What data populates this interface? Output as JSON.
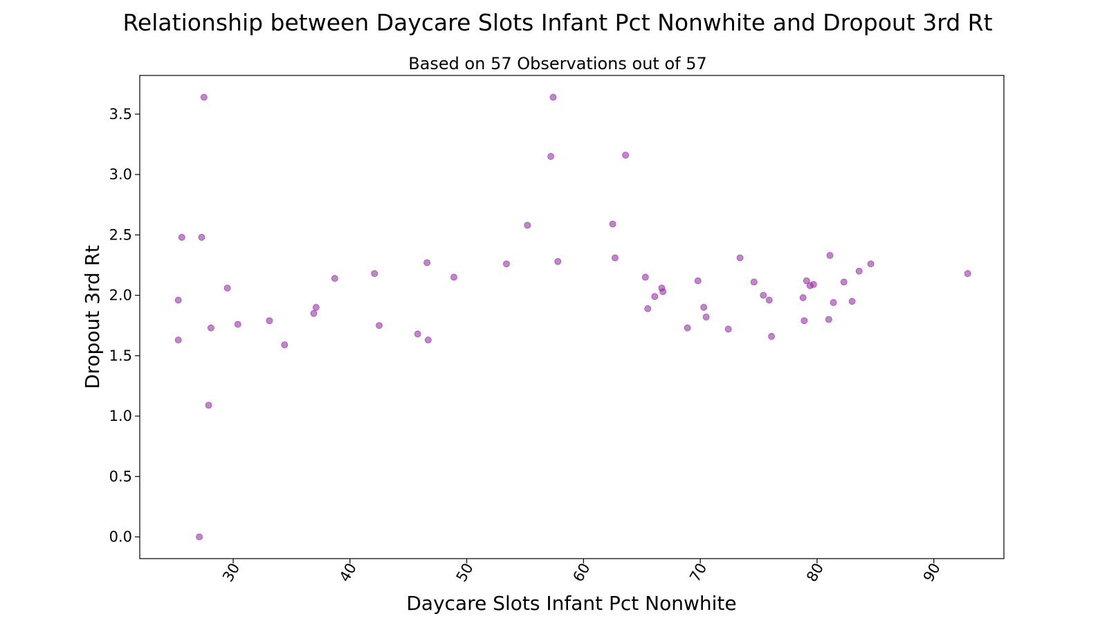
{
  "chart_data": {
    "type": "scatter",
    "title": "Relationship between Daycare Slots Infant Pct Nonwhite and Dropout 3rd Rt",
    "subtitle": "Based on 57 Observations out of 57",
    "xlabel": "Daycare Slots Infant Pct Nonwhite",
    "ylabel": "Dropout 3rd Rt",
    "xlim": [
      22,
      96
    ],
    "ylim": [
      -0.18,
      3.82
    ],
    "xticks": [
      30,
      40,
      50,
      60,
      70,
      80,
      90
    ],
    "yticks": [
      0.0,
      0.5,
      1.0,
      1.5,
      2.0,
      2.5,
      3.0,
      3.5
    ],
    "ytick_labels": [
      "0.0",
      "0.5",
      "1.0",
      "1.5",
      "2.0",
      "2.5",
      "3.0",
      "3.5"
    ],
    "grid": false,
    "marker_color": "#9932a8",
    "marker_alpha": 0.6,
    "series": [
      {
        "points": [
          [
            25.3,
            1.96
          ],
          [
            25.3,
            1.63
          ],
          [
            25.6,
            2.48
          ],
          [
            27.1,
            0.0
          ],
          [
            27.3,
            2.48
          ],
          [
            27.5,
            3.64
          ],
          [
            27.9,
            1.09
          ],
          [
            28.1,
            1.73
          ],
          [
            29.5,
            2.06
          ],
          [
            30.4,
            1.76
          ],
          [
            33.1,
            1.79
          ],
          [
            34.4,
            1.59
          ],
          [
            36.9,
            1.85
          ],
          [
            37.1,
            1.9
          ],
          [
            38.7,
            2.14
          ],
          [
            42.1,
            2.18
          ],
          [
            42.5,
            1.75
          ],
          [
            45.8,
            1.68
          ],
          [
            46.6,
            2.27
          ],
          [
            46.7,
            1.63
          ],
          [
            48.9,
            2.15
          ],
          [
            53.4,
            2.26
          ],
          [
            55.2,
            2.58
          ],
          [
            57.2,
            3.15
          ],
          [
            57.4,
            3.64
          ],
          [
            57.8,
            2.28
          ],
          [
            62.5,
            2.59
          ],
          [
            62.7,
            2.31
          ],
          [
            63.6,
            3.16
          ],
          [
            65.3,
            2.15
          ],
          [
            65.5,
            1.89
          ],
          [
            66.1,
            1.99
          ],
          [
            66.7,
            2.06
          ],
          [
            66.8,
            2.03
          ],
          [
            68.9,
            1.73
          ],
          [
            69.8,
            2.12
          ],
          [
            70.3,
            1.9
          ],
          [
            70.5,
            1.82
          ],
          [
            72.4,
            1.72
          ],
          [
            73.4,
            2.31
          ],
          [
            74.6,
            2.11
          ],
          [
            75.4,
            2.0
          ],
          [
            75.9,
            1.96
          ],
          [
            76.1,
            1.66
          ],
          [
            78.8,
            1.98
          ],
          [
            78.9,
            1.79
          ],
          [
            79.1,
            2.12
          ],
          [
            79.4,
            2.08
          ],
          [
            79.7,
            2.09
          ],
          [
            81.0,
            1.8
          ],
          [
            81.1,
            2.33
          ],
          [
            81.4,
            1.94
          ],
          [
            82.3,
            2.11
          ],
          [
            83.0,
            1.95
          ],
          [
            83.6,
            2.2
          ],
          [
            84.6,
            2.26
          ],
          [
            92.9,
            2.18
          ]
        ]
      }
    ]
  }
}
